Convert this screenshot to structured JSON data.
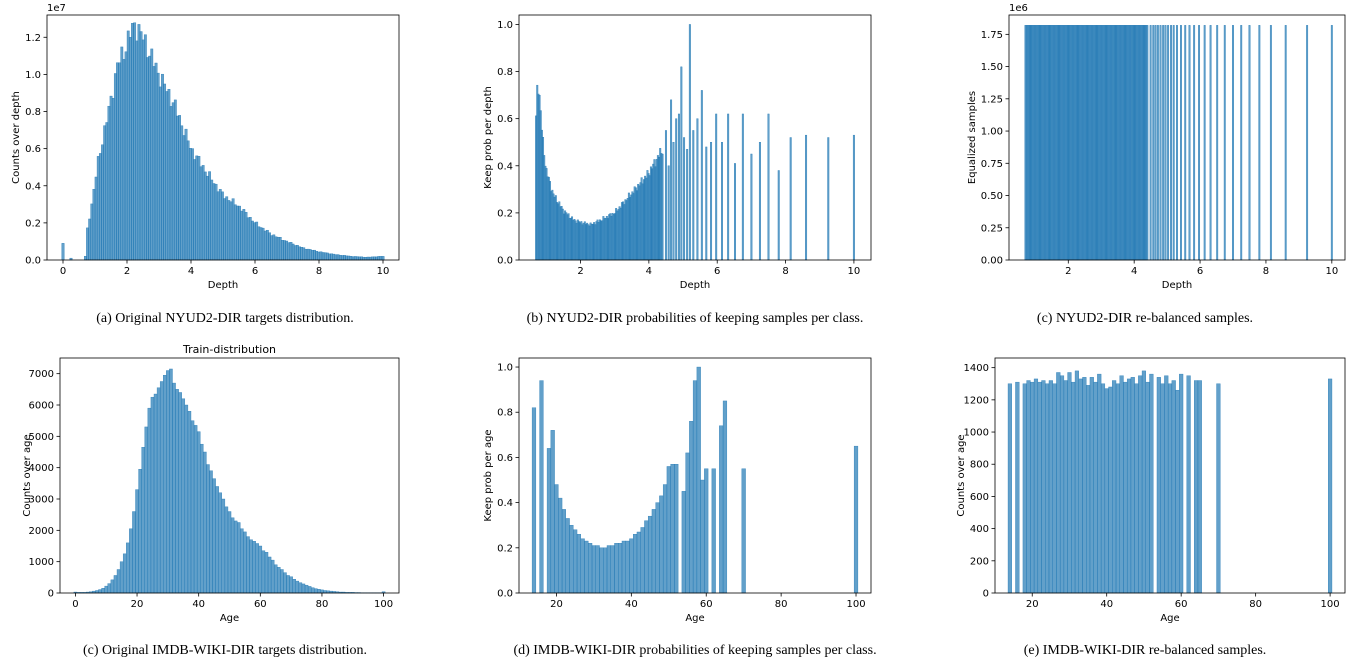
{
  "colors": {
    "bar": "#1f77b4",
    "bar_alpha": 0.7,
    "axis": "#000000"
  },
  "chart_data": [
    {
      "id": "a",
      "type": "bar",
      "title": "",
      "xlabel": "Depth",
      "ylabel": "Counts over depth",
      "offset_text": "1e7",
      "xlim": [
        -0.5,
        10.5
      ],
      "ylim": [
        0,
        1.32
      ],
      "xticks": [
        0,
        2,
        4,
        6,
        8,
        10
      ],
      "xtick_labels": [
        "0",
        "2",
        "4",
        "6",
        "8",
        "10"
      ],
      "yticks": [
        0,
        0.2,
        0.4,
        0.6,
        0.8,
        1.0,
        1.2
      ],
      "ytick_labels": [
        "0.0",
        "0.2",
        "0.4",
        "0.6",
        "0.8",
        "1.0",
        "1.2"
      ],
      "dense_x": [
        0.7,
        10
      ],
      "dense_n": 140,
      "bar_width": 0.075,
      "profile": [
        [
          0.7,
          0.02
        ],
        [
          0.75,
          0.15
        ],
        [
          0.9,
          0.3
        ],
        [
          1.1,
          0.53
        ],
        [
          1.3,
          0.7
        ],
        [
          1.5,
          0.86
        ],
        [
          1.7,
          1.05
        ],
        [
          1.9,
          1.12
        ],
        [
          2.1,
          1.22
        ],
        [
          2.25,
          1.27
        ],
        [
          2.5,
          1.2
        ],
        [
          2.8,
          1.08
        ],
        [
          3.0,
          1.0
        ],
        [
          3.5,
          0.83
        ],
        [
          4.0,
          0.6
        ],
        [
          4.5,
          0.47
        ],
        [
          5.0,
          0.35
        ],
        [
          5.5,
          0.29
        ],
        [
          6.0,
          0.2
        ],
        [
          6.5,
          0.14
        ],
        [
          7.0,
          0.1
        ],
        [
          7.5,
          0.065
        ],
        [
          8.0,
          0.045
        ],
        [
          8.5,
          0.03
        ],
        [
          9.0,
          0.02
        ],
        [
          9.5,
          0.015
        ],
        [
          10.0,
          0.02
        ]
      ],
      "extra": [
        {
          "x": 0.0,
          "y": 0.09
        },
        {
          "x": 0.25,
          "y": 0.01
        }
      ]
    },
    {
      "id": "b",
      "type": "bar",
      "title": "",
      "xlabel": "Depth",
      "ylabel": "Keep prob per depth",
      "offset_text": "",
      "xlim": [
        0.2,
        10.5
      ],
      "ylim": [
        0,
        1.04
      ],
      "xticks": [
        2,
        4,
        6,
        8,
        10
      ],
      "xtick_labels": [
        "2",
        "4",
        "6",
        "8",
        "10"
      ],
      "yticks": [
        0,
        0.2,
        0.4,
        0.6,
        0.8,
        1.0
      ],
      "ytick_labels": [
        "0.0",
        "0.2",
        "0.4",
        "0.6",
        "0.8",
        "1.0"
      ],
      "dense_x": [
        0.7,
        4.4
      ],
      "dense_n": 110,
      "bar_width": 0.045,
      "profile": [
        [
          0.7,
          0.6
        ],
        [
          0.75,
          0.77
        ],
        [
          0.8,
          0.7
        ],
        [
          0.9,
          0.5
        ],
        [
          1.0,
          0.38
        ],
        [
          1.2,
          0.28
        ],
        [
          1.5,
          0.21
        ],
        [
          1.8,
          0.17
        ],
        [
          2.0,
          0.16
        ],
        [
          2.3,
          0.15
        ],
        [
          2.6,
          0.17
        ],
        [
          3.0,
          0.2
        ],
        [
          3.3,
          0.25
        ],
        [
          3.6,
          0.3
        ],
        [
          4.0,
          0.37
        ],
        [
          4.4,
          0.47
        ]
      ],
      "extra": [
        {
          "x": 4.5,
          "y": 0.55
        },
        {
          "x": 4.58,
          "y": 0.4
        },
        {
          "x": 4.65,
          "y": 0.68
        },
        {
          "x": 4.72,
          "y": 0.5
        },
        {
          "x": 4.8,
          "y": 0.6
        },
        {
          "x": 4.88,
          "y": 0.62
        },
        {
          "x": 4.95,
          "y": 0.82
        },
        {
          "x": 5.03,
          "y": 0.52
        },
        {
          "x": 5.12,
          "y": 0.47
        },
        {
          "x": 5.2,
          "y": 1.0
        },
        {
          "x": 5.3,
          "y": 0.55
        },
        {
          "x": 5.42,
          "y": 0.6
        },
        {
          "x": 5.55,
          "y": 0.72
        },
        {
          "x": 5.68,
          "y": 0.48
        },
        {
          "x": 5.82,
          "y": 0.5
        },
        {
          "x": 5.97,
          "y": 0.62
        },
        {
          "x": 6.14,
          "y": 0.5
        },
        {
          "x": 6.32,
          "y": 0.62
        },
        {
          "x": 6.52,
          "y": 0.41
        },
        {
          "x": 6.75,
          "y": 0.62
        },
        {
          "x": 7.0,
          "y": 0.45
        },
        {
          "x": 7.25,
          "y": 0.5
        },
        {
          "x": 7.5,
          "y": 0.62
        },
        {
          "x": 7.8,
          "y": 0.38
        },
        {
          "x": 8.15,
          "y": 0.52
        },
        {
          "x": 8.6,
          "y": 0.53
        },
        {
          "x": 9.25,
          "y": 0.52
        },
        {
          "x": 10.0,
          "y": 0.53
        }
      ]
    },
    {
      "id": "c",
      "type": "bar",
      "title": "",
      "xlabel": "Depth",
      "ylabel": "Equalized samples",
      "offset_text": "1e6",
      "xlim": [
        0.2,
        10.4
      ],
      "ylim": [
        0,
        1.9
      ],
      "xticks": [
        2,
        4,
        6,
        8,
        10
      ],
      "xtick_labels": [
        "2",
        "4",
        "6",
        "8",
        "10"
      ],
      "yticks": [
        0,
        0.25,
        0.5,
        0.75,
        1.0,
        1.25,
        1.5,
        1.75
      ],
      "ytick_labels": [
        "0.00",
        "0.25",
        "0.50",
        "0.75",
        "1.00",
        "1.25",
        "1.50",
        "1.75"
      ],
      "dense_x": [
        0.7,
        4.4
      ],
      "dense_n": 110,
      "bar_width": 0.045,
      "profile": [
        [
          0.7,
          1.82
        ],
        [
          4.4,
          1.82
        ]
      ],
      "extra": [
        {
          "x": 4.5,
          "y": 1.82
        },
        {
          "x": 4.58,
          "y": 1.82
        },
        {
          "x": 4.65,
          "y": 1.82
        },
        {
          "x": 4.72,
          "y": 1.82
        },
        {
          "x": 4.8,
          "y": 1.82
        },
        {
          "x": 4.88,
          "y": 1.82
        },
        {
          "x": 4.95,
          "y": 1.82
        },
        {
          "x": 5.03,
          "y": 1.82
        },
        {
          "x": 5.12,
          "y": 1.82
        },
        {
          "x": 5.2,
          "y": 1.82
        },
        {
          "x": 5.3,
          "y": 1.82
        },
        {
          "x": 5.42,
          "y": 1.82
        },
        {
          "x": 5.55,
          "y": 1.82
        },
        {
          "x": 5.68,
          "y": 1.82
        },
        {
          "x": 5.82,
          "y": 1.82
        },
        {
          "x": 5.97,
          "y": 1.82
        },
        {
          "x": 6.14,
          "y": 1.82
        },
        {
          "x": 6.32,
          "y": 1.82
        },
        {
          "x": 6.52,
          "y": 1.82
        },
        {
          "x": 6.75,
          "y": 1.82
        },
        {
          "x": 7.0,
          "y": 1.82
        },
        {
          "x": 7.25,
          "y": 1.82
        },
        {
          "x": 7.5,
          "y": 1.82
        },
        {
          "x": 7.8,
          "y": 1.82
        },
        {
          "x": 8.15,
          "y": 1.82
        },
        {
          "x": 8.6,
          "y": 1.82
        },
        {
          "x": 9.25,
          "y": 1.82
        },
        {
          "x": 10.0,
          "y": 1.82
        }
      ]
    },
    {
      "id": "d",
      "type": "bar",
      "title": "Train-distribution",
      "xlabel": "Age",
      "ylabel": "Counts over age",
      "offset_text": "",
      "xlim": [
        -5,
        105
      ],
      "ylim": [
        0,
        7500
      ],
      "xticks": [
        0,
        20,
        40,
        60,
        80,
        100
      ],
      "xtick_labels": [
        "0",
        "20",
        "40",
        "60",
        "80",
        "100"
      ],
      "yticks": [
        0,
        1000,
        2000,
        3000,
        4000,
        5000,
        6000,
        7000
      ],
      "ytick_labels": [
        "0",
        "1000",
        "2000",
        "3000",
        "4000",
        "5000",
        "6000",
        "7000"
      ],
      "categories": [
        0,
        1,
        2,
        3,
        4,
        5,
        6,
        7,
        8,
        9,
        10,
        11,
        12,
        13,
        14,
        15,
        16,
        17,
        18,
        19,
        20,
        21,
        22,
        23,
        24,
        25,
        26,
        27,
        28,
        29,
        30,
        31,
        32,
        33,
        34,
        35,
        36,
        37,
        38,
        39,
        40,
        41,
        42,
        43,
        44,
        45,
        46,
        47,
        48,
        49,
        50,
        51,
        52,
        53,
        54,
        55,
        56,
        57,
        58,
        59,
        60,
        61,
        62,
        63,
        64,
        65,
        66,
        67,
        68,
        69,
        70,
        71,
        72,
        73,
        74,
        75,
        76,
        77,
        78,
        79,
        80,
        81,
        82,
        83,
        84,
        85,
        86,
        87,
        88,
        89,
        90,
        91,
        92,
        93,
        94,
        95,
        96,
        97,
        98,
        99,
        100
      ],
      "values": [
        30,
        20,
        20,
        20,
        30,
        40,
        60,
        80,
        110,
        150,
        220,
        300,
        420,
        560,
        750,
        1000,
        1250,
        1600,
        2050,
        2600,
        3300,
        3950,
        4650,
        5300,
        5900,
        6250,
        6350,
        6550,
        6750,
        6950,
        7100,
        7150,
        6700,
        6500,
        6400,
        6200,
        6000,
        5800,
        5500,
        5350,
        5150,
        4750,
        4500,
        4100,
        3900,
        3650,
        3400,
        3200,
        3000,
        2750,
        2600,
        2400,
        2300,
        2250,
        2050,
        1950,
        1800,
        1700,
        1650,
        1580,
        1500,
        1350,
        1300,
        1150,
        1050,
        900,
        820,
        750,
        650,
        560,
        520,
        440,
        380,
        330,
        290,
        250,
        210,
        170,
        140,
        120,
        100,
        80,
        70,
        60,
        50,
        40,
        30,
        30,
        20,
        20,
        20,
        15,
        15,
        10,
        10,
        10,
        10,
        10,
        10,
        10,
        40
      ],
      "bar_width": 1
    },
    {
      "id": "e",
      "type": "bar",
      "title": "",
      "xlabel": "Age",
      "ylabel": "Keep prob per age",
      "offset_text": "",
      "xlim": [
        10,
        104
      ],
      "ylim": [
        0,
        1.04
      ],
      "xticks": [
        20,
        40,
        60,
        80,
        100
      ],
      "xtick_labels": [
        "20",
        "40",
        "60",
        "80",
        "100"
      ],
      "yticks": [
        0,
        0.2,
        0.4,
        0.6,
        0.8,
        1.0
      ],
      "ytick_labels": [
        "0.0",
        "0.2",
        "0.4",
        "0.6",
        "0.8",
        "1.0"
      ],
      "categories": [
        14,
        16,
        18,
        19,
        20,
        21,
        22,
        23,
        24,
        25,
        26,
        27,
        28,
        29,
        30,
        31,
        32,
        33,
        34,
        35,
        36,
        37,
        38,
        39,
        40,
        41,
        42,
        43,
        44,
        45,
        46,
        47,
        48,
        49,
        50,
        51,
        52,
        54,
        55,
        56,
        57,
        58,
        59,
        60,
        62,
        64,
        65,
        70,
        100
      ],
      "values": [
        0.82,
        0.94,
        0.64,
        0.72,
        0.48,
        0.42,
        0.37,
        0.33,
        0.3,
        0.28,
        0.26,
        0.24,
        0.23,
        0.22,
        0.21,
        0.21,
        0.2,
        0.2,
        0.21,
        0.21,
        0.22,
        0.22,
        0.23,
        0.23,
        0.24,
        0.26,
        0.27,
        0.29,
        0.32,
        0.34,
        0.37,
        0.4,
        0.43,
        0.48,
        0.56,
        0.57,
        0.57,
        0.45,
        0.62,
        0.76,
        0.94,
        1.0,
        0.5,
        0.55,
        0.55,
        0.74,
        0.85,
        0.55,
        0.65
      ],
      "bar_width": 1
    },
    {
      "id": "f",
      "type": "bar",
      "title": "",
      "xlabel": "Age",
      "ylabel": "Counts over age",
      "offset_text": "",
      "xlim": [
        10,
        104
      ],
      "ylim": [
        0,
        1460
      ],
      "xticks": [
        20,
        40,
        60,
        80,
        100
      ],
      "xtick_labels": [
        "20",
        "40",
        "60",
        "80",
        "100"
      ],
      "yticks": [
        0,
        200,
        400,
        600,
        800,
        1000,
        1200,
        1400
      ],
      "ytick_labels": [
        "0",
        "200",
        "400",
        "600",
        "800",
        "1000",
        "1200",
        "1400"
      ],
      "categories": [
        14,
        16,
        18,
        19,
        20,
        21,
        22,
        23,
        24,
        25,
        26,
        27,
        28,
        29,
        30,
        31,
        32,
        33,
        34,
        35,
        36,
        37,
        38,
        39,
        40,
        41,
        42,
        43,
        44,
        45,
        46,
        47,
        48,
        49,
        50,
        51,
        52,
        54,
        55,
        56,
        57,
        58,
        59,
        60,
        62,
        64,
        65,
        70,
        100
      ],
      "values": [
        1300,
        1310,
        1300,
        1320,
        1310,
        1330,
        1310,
        1320,
        1300,
        1320,
        1300,
        1370,
        1350,
        1320,
        1370,
        1310,
        1380,
        1330,
        1340,
        1290,
        1340,
        1310,
        1360,
        1300,
        1270,
        1280,
        1320,
        1300,
        1350,
        1310,
        1330,
        1340,
        1300,
        1350,
        1380,
        1310,
        1360,
        1340,
        1300,
        1350,
        1300,
        1320,
        1260,
        1360,
        1350,
        1320,
        1320,
        1300,
        1330
      ],
      "bar_width": 1
    }
  ],
  "captions": [
    "(a) Original NYUD2-DIR targets distribution.",
    "(b) NYUD2-DIR probabilities of keeping samples per class.",
    "(c) NYUD2-DIR re-balanced samples.",
    "(c) Original IMDB-WIKI-DIR targets distribution.",
    "(d) IMDB-WIKI-DIR probabilities of keeping samples per class.",
    "(e) IMDB-WIKI-DIR re-balanced samples."
  ]
}
